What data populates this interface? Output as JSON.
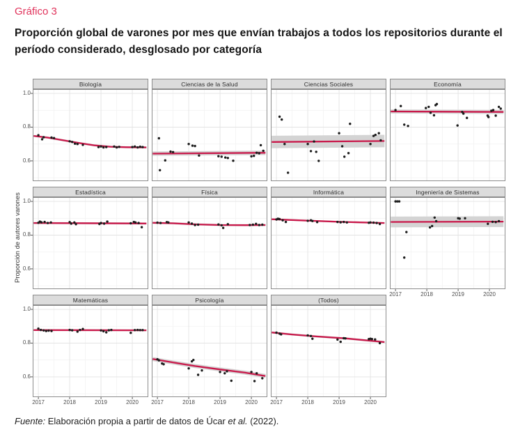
{
  "figure": {
    "label": "Gráfico 3",
    "title": "Proporción global de varones por mes que envían trabajos a todos los repositorios durante el período considerado, desglosado por categoría",
    "y_axis_label": "Proporción de autores varones"
  },
  "source": {
    "prefix": "Fuente:",
    "body": " Elaboración propia a partir de datos de Úcar ",
    "etal": "et al.",
    "suffix": " (2022)."
  },
  "colors": {
    "accent_title": "#e0315a",
    "trend_line": "#c9184a",
    "confidence_band": "#d4d4d4",
    "point": "#1c1c1c",
    "strip_bg": "#dcdcdc",
    "panel_border": "#8c8c8c",
    "grid_major": "#e3e3e3",
    "grid_minor": "#f1f1f1",
    "tick_text": "#4d4d4d"
  },
  "chart_data": {
    "type": "scatter",
    "title": "Proporción global de varones por mes que envían trabajos a todos los repositorios durante el período considerado, desglosado por categoría",
    "xlabel": "",
    "ylabel": "Proporción de autores varones",
    "x_domain": [
      2016.82,
      2020.51
    ],
    "y_domain": [
      0.48,
      1.025
    ],
    "x_ticks": [
      2017,
      2018,
      2019,
      2020
    ],
    "x_tick_labels": [
      "2017",
      "2018",
      "2019",
      "2020"
    ],
    "y_ticks": [
      1.0,
      0.8,
      0.6
    ],
    "y_tick_labels": [
      "1.0",
      "0.8",
      "0.6"
    ],
    "grid": true,
    "legend": false,
    "panels": [
      {
        "title": "Biología",
        "slug": "biologia",
        "col": 0,
        "row": 0,
        "show_x": false,
        "band": 0.006,
        "points": [
          [
            2017.0,
            0.752
          ],
          [
            2017.12,
            0.728
          ],
          [
            2017.17,
            0.74
          ],
          [
            2017.42,
            0.738
          ],
          [
            2017.5,
            0.735
          ],
          [
            2018.0,
            0.716
          ],
          [
            2018.08,
            0.712
          ],
          [
            2018.17,
            0.702
          ],
          [
            2018.25,
            0.7
          ],
          [
            2018.42,
            0.695
          ],
          [
            2018.92,
            0.682
          ],
          [
            2019.0,
            0.685
          ],
          [
            2019.08,
            0.68
          ],
          [
            2019.17,
            0.682
          ],
          [
            2019.42,
            0.685
          ],
          [
            2019.5,
            0.68
          ],
          [
            2019.58,
            0.683
          ],
          [
            2020.0,
            0.682
          ],
          [
            2020.08,
            0.685
          ],
          [
            2020.17,
            0.68
          ],
          [
            2020.25,
            0.684
          ],
          [
            2020.33,
            0.682
          ]
        ],
        "trend": [
          [
            2016.85,
            0.748
          ],
          [
            2017.3,
            0.738
          ],
          [
            2017.8,
            0.722
          ],
          [
            2018.3,
            0.706
          ],
          [
            2018.8,
            0.692
          ],
          [
            2019.3,
            0.684
          ],
          [
            2019.8,
            0.681
          ],
          [
            2020.45,
            0.68
          ]
        ]
      },
      {
        "title": "Ciencias de la Salud",
        "slug": "ciencias-de-la-salud",
        "col": 1,
        "row": 0,
        "show_x": false,
        "band": 0.013,
        "points": [
          [
            2017.05,
            0.734
          ],
          [
            2017.08,
            0.545
          ],
          [
            2017.25,
            0.603
          ],
          [
            2017.42,
            0.655
          ],
          [
            2017.5,
            0.652
          ],
          [
            2018.0,
            0.7
          ],
          [
            2018.12,
            0.69
          ],
          [
            2018.2,
            0.688
          ],
          [
            2018.33,
            0.632
          ],
          [
            2018.95,
            0.628
          ],
          [
            2019.05,
            0.625
          ],
          [
            2019.17,
            0.62
          ],
          [
            2019.25,
            0.617
          ],
          [
            2019.42,
            0.601
          ],
          [
            2020.0,
            0.627
          ],
          [
            2020.08,
            0.63
          ],
          [
            2020.17,
            0.648
          ],
          [
            2020.25,
            0.645
          ],
          [
            2020.3,
            0.693
          ],
          [
            2020.38,
            0.66
          ]
        ],
        "trend": [
          [
            2016.85,
            0.643
          ],
          [
            2020.45,
            0.648
          ]
        ]
      },
      {
        "title": "Ciencias Sociales",
        "slug": "ciencias-sociales",
        "col": 2,
        "row": 0,
        "show_x": false,
        "band": 0.037,
        "points": [
          [
            2017.1,
            0.862
          ],
          [
            2017.17,
            0.845
          ],
          [
            2017.26,
            0.7
          ],
          [
            2017.37,
            0.53
          ],
          [
            2018.0,
            0.7
          ],
          [
            2018.1,
            0.658
          ],
          [
            2018.2,
            0.715
          ],
          [
            2018.27,
            0.654
          ],
          [
            2018.35,
            0.6
          ],
          [
            2019.0,
            0.764
          ],
          [
            2019.1,
            0.687
          ],
          [
            2019.17,
            0.625
          ],
          [
            2019.3,
            0.646
          ],
          [
            2019.35,
            0.82
          ],
          [
            2020.0,
            0.7
          ],
          [
            2020.1,
            0.748
          ],
          [
            2020.16,
            0.754
          ],
          [
            2020.27,
            0.764
          ],
          [
            2020.33,
            0.722
          ]
        ],
        "trend": [
          [
            2016.85,
            0.712
          ],
          [
            2020.45,
            0.718
          ]
        ]
      },
      {
        "title": "Economía",
        "slug": "economia",
        "col": 3,
        "row": 0,
        "show_x": false,
        "band": 0.012,
        "points": [
          [
            2017.0,
            0.901
          ],
          [
            2017.17,
            0.925
          ],
          [
            2017.28,
            0.815
          ],
          [
            2017.4,
            0.807
          ],
          [
            2017.97,
            0.913
          ],
          [
            2018.06,
            0.92
          ],
          [
            2018.12,
            0.885
          ],
          [
            2018.23,
            0.87
          ],
          [
            2018.28,
            0.93
          ],
          [
            2018.32,
            0.937
          ],
          [
            2018.98,
            0.81
          ],
          [
            2019.13,
            0.89
          ],
          [
            2019.17,
            0.88
          ],
          [
            2019.28,
            0.855
          ],
          [
            2019.94,
            0.868
          ],
          [
            2019.97,
            0.86
          ],
          [
            2020.06,
            0.897
          ],
          [
            2020.12,
            0.901
          ],
          [
            2020.2,
            0.868
          ],
          [
            2020.3,
            0.92
          ],
          [
            2020.36,
            0.91
          ]
        ],
        "trend": [
          [
            2016.85,
            0.893
          ],
          [
            2020.45,
            0.89
          ]
        ]
      },
      {
        "title": "Estadística",
        "slug": "estadistica",
        "col": 0,
        "row": 1,
        "show_x": false,
        "band": 0.006,
        "points": [
          [
            2017.0,
            0.873
          ],
          [
            2017.05,
            0.88
          ],
          [
            2017.1,
            0.876
          ],
          [
            2017.2,
            0.878
          ],
          [
            2017.3,
            0.872
          ],
          [
            2017.4,
            0.875
          ],
          [
            2018.0,
            0.877
          ],
          [
            2018.05,
            0.868
          ],
          [
            2018.15,
            0.875
          ],
          [
            2018.2,
            0.865
          ],
          [
            2018.95,
            0.866
          ],
          [
            2019.0,
            0.872
          ],
          [
            2019.1,
            0.868
          ],
          [
            2019.2,
            0.88
          ],
          [
            2019.95,
            0.87
          ],
          [
            2020.05,
            0.878
          ],
          [
            2020.1,
            0.875
          ],
          [
            2020.2,
            0.872
          ],
          [
            2020.3,
            0.847
          ]
        ],
        "trend": [
          [
            2016.85,
            0.872
          ],
          [
            2020.45,
            0.869
          ]
        ]
      },
      {
        "title": "Física",
        "slug": "fisica",
        "col": 1,
        "row": 1,
        "show_x": false,
        "band": 0.006,
        "points": [
          [
            2017.0,
            0.874
          ],
          [
            2017.1,
            0.872
          ],
          [
            2017.3,
            0.877
          ],
          [
            2017.35,
            0.875
          ],
          [
            2018.0,
            0.875
          ],
          [
            2018.1,
            0.868
          ],
          [
            2018.2,
            0.86
          ],
          [
            2018.3,
            0.862
          ],
          [
            2018.95,
            0.863
          ],
          [
            2019.05,
            0.858
          ],
          [
            2019.1,
            0.843
          ],
          [
            2019.25,
            0.865
          ],
          [
            2019.95,
            0.86
          ],
          [
            2020.05,
            0.862
          ],
          [
            2020.15,
            0.867
          ],
          [
            2020.25,
            0.86
          ],
          [
            2020.35,
            0.862
          ]
        ],
        "trend": [
          [
            2016.85,
            0.873
          ],
          [
            2017.5,
            0.87
          ],
          [
            2018.2,
            0.864
          ],
          [
            2019.0,
            0.86
          ],
          [
            2019.8,
            0.859
          ],
          [
            2020.45,
            0.86
          ]
        ]
      },
      {
        "title": "Informática",
        "slug": "informatica",
        "col": 2,
        "row": 1,
        "show_x": false,
        "band": 0.005,
        "points": [
          [
            2017.0,
            0.893
          ],
          [
            2017.05,
            0.897
          ],
          [
            2017.1,
            0.895
          ],
          [
            2017.2,
            0.888
          ],
          [
            2017.3,
            0.878
          ],
          [
            2018.0,
            0.885
          ],
          [
            2018.1,
            0.888
          ],
          [
            2018.15,
            0.884
          ],
          [
            2018.3,
            0.877
          ],
          [
            2018.95,
            0.878
          ],
          [
            2019.05,
            0.876
          ],
          [
            2019.15,
            0.878
          ],
          [
            2019.25,
            0.875
          ],
          [
            2019.95,
            0.873
          ],
          [
            2020.0,
            0.875
          ],
          [
            2020.1,
            0.874
          ],
          [
            2020.2,
            0.872
          ],
          [
            2020.3,
            0.866
          ]
        ],
        "trend": [
          [
            2016.85,
            0.894
          ],
          [
            2018.0,
            0.886
          ],
          [
            2019.0,
            0.879
          ],
          [
            2020.45,
            0.872
          ]
        ]
      },
      {
        "title": "Ingeniería de Sistemas",
        "slug": "ingenieria-de-sistemas",
        "col": 3,
        "row": 1,
        "show_x": true,
        "band": 0.032,
        "points": [
          [
            2017.0,
            1.0
          ],
          [
            2017.06,
            1.0
          ],
          [
            2017.12,
            1.0
          ],
          [
            2017.28,
            0.667
          ],
          [
            2017.35,
            0.818
          ],
          [
            2018.1,
            0.846
          ],
          [
            2018.17,
            0.854
          ],
          [
            2018.25,
            0.904
          ],
          [
            2018.3,
            0.883
          ],
          [
            2019.0,
            0.9
          ],
          [
            2019.05,
            0.898
          ],
          [
            2019.22,
            0.9
          ],
          [
            2019.95,
            0.867
          ],
          [
            2020.1,
            0.879
          ],
          [
            2020.2,
            0.877
          ],
          [
            2020.3,
            0.883
          ]
        ],
        "trend": [
          [
            2016.85,
            0.878
          ],
          [
            2020.45,
            0.88
          ]
        ]
      },
      {
        "title": "Matemáticas",
        "slug": "matematicas",
        "col": 0,
        "row": 2,
        "show_x": true,
        "band": 0.005,
        "points": [
          [
            2017.0,
            0.886
          ],
          [
            2017.08,
            0.878
          ],
          [
            2017.17,
            0.875
          ],
          [
            2017.25,
            0.872
          ],
          [
            2017.33,
            0.874
          ],
          [
            2017.42,
            0.872
          ],
          [
            2018.0,
            0.878
          ],
          [
            2018.08,
            0.876
          ],
          [
            2018.25,
            0.868
          ],
          [
            2018.33,
            0.878
          ],
          [
            2018.42,
            0.884
          ],
          [
            2019.0,
            0.875
          ],
          [
            2019.08,
            0.87
          ],
          [
            2019.17,
            0.864
          ],
          [
            2019.25,
            0.876
          ],
          [
            2019.33,
            0.878
          ],
          [
            2019.95,
            0.861
          ],
          [
            2020.08,
            0.877
          ],
          [
            2020.17,
            0.878
          ],
          [
            2020.25,
            0.877
          ],
          [
            2020.33,
            0.877
          ]
        ],
        "trend": [
          [
            2016.85,
            0.877
          ],
          [
            2020.45,
            0.876
          ]
        ]
      },
      {
        "title": "Psicología",
        "slug": "psicologia",
        "col": 1,
        "row": 2,
        "show_x": true,
        "band": 0.012,
        "points": [
          [
            2017.0,
            0.704
          ],
          [
            2017.05,
            0.698
          ],
          [
            2017.15,
            0.679
          ],
          [
            2017.2,
            0.675
          ],
          [
            2018.0,
            0.65
          ],
          [
            2018.1,
            0.692
          ],
          [
            2018.15,
            0.7
          ],
          [
            2018.3,
            0.612
          ],
          [
            2018.42,
            0.638
          ],
          [
            2019.0,
            0.629
          ],
          [
            2019.15,
            0.621
          ],
          [
            2019.22,
            0.633
          ],
          [
            2019.36,
            0.577
          ],
          [
            2020.0,
            0.629
          ],
          [
            2020.1,
            0.575
          ],
          [
            2020.17,
            0.621
          ],
          [
            2020.35,
            0.592
          ]
        ],
        "trend": [
          [
            2016.85,
            0.706
          ],
          [
            2017.5,
            0.685
          ],
          [
            2018.2,
            0.664
          ],
          [
            2019.0,
            0.644
          ],
          [
            2019.8,
            0.625
          ],
          [
            2020.45,
            0.605
          ]
        ]
      },
      {
        "title": "(Todos)",
        "slug": "todos",
        "col": 2,
        "row": 2,
        "show_x": true,
        "band": 0.006,
        "points": [
          [
            2017.0,
            0.862
          ],
          [
            2017.1,
            0.856
          ],
          [
            2017.15,
            0.852
          ],
          [
            2018.0,
            0.846
          ],
          [
            2018.1,
            0.842
          ],
          [
            2018.15,
            0.826
          ],
          [
            2018.95,
            0.821
          ],
          [
            2019.05,
            0.808
          ],
          [
            2019.15,
            0.829
          ],
          [
            2019.2,
            0.828
          ],
          [
            2019.95,
            0.824
          ],
          [
            2020.0,
            0.826
          ],
          [
            2020.05,
            0.824
          ],
          [
            2020.15,
            0.822
          ],
          [
            2020.3,
            0.8
          ]
        ],
        "trend": [
          [
            2016.85,
            0.863
          ],
          [
            2017.5,
            0.851
          ],
          [
            2018.3,
            0.839
          ],
          [
            2019.2,
            0.828
          ],
          [
            2020.45,
            0.806
          ]
        ]
      }
    ]
  }
}
